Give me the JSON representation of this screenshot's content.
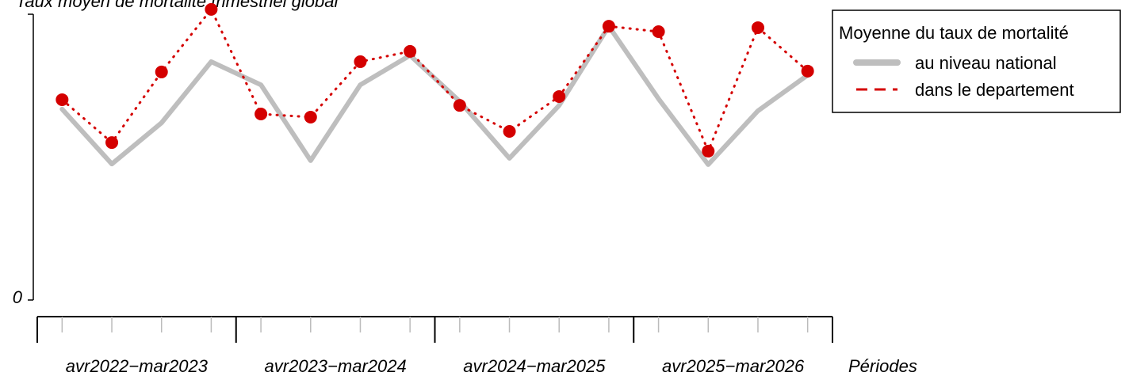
{
  "chart_data": {
    "type": "line",
    "title": "Taux moyen de mortalité trimestriel global",
    "x_label": "Périodes",
    "categories": [
      null,
      null,
      null,
      null,
      null,
      null,
      null,
      null,
      null,
      null,
      null,
      null,
      null,
      null,
      null,
      null
    ],
    "groups": [
      "avr2022−mar2023",
      "avr2023−mar2024",
      "avr2024−mar2025",
      "avr2025−mar2026"
    ],
    "ylim": [
      0,
      10
    ],
    "yticks": [
      0
    ],
    "legend_title": "Moyenne du taux de mortalité",
    "legend": "top-right",
    "series": [
      {
        "name": "au niveau national",
        "color": "#bebebe",
        "style": "solid",
        "values": [
          6.68,
          4.76,
          6.2,
          8.34,
          7.53,
          4.88,
          7.53,
          8.56,
          6.95,
          4.96,
          6.81,
          9.58,
          7.04,
          4.74,
          6.62,
          7.87
        ]
      },
      {
        "name": "dans le departement",
        "color": "#d40000",
        "style": "dotted",
        "values": [
          7.01,
          5.51,
          7.98,
          10.17,
          6.51,
          6.4,
          8.34,
          8.7,
          6.81,
          5.9,
          7.12,
          9.58,
          9.39,
          5.21,
          9.53,
          8.01
        ]
      }
    ]
  }
}
